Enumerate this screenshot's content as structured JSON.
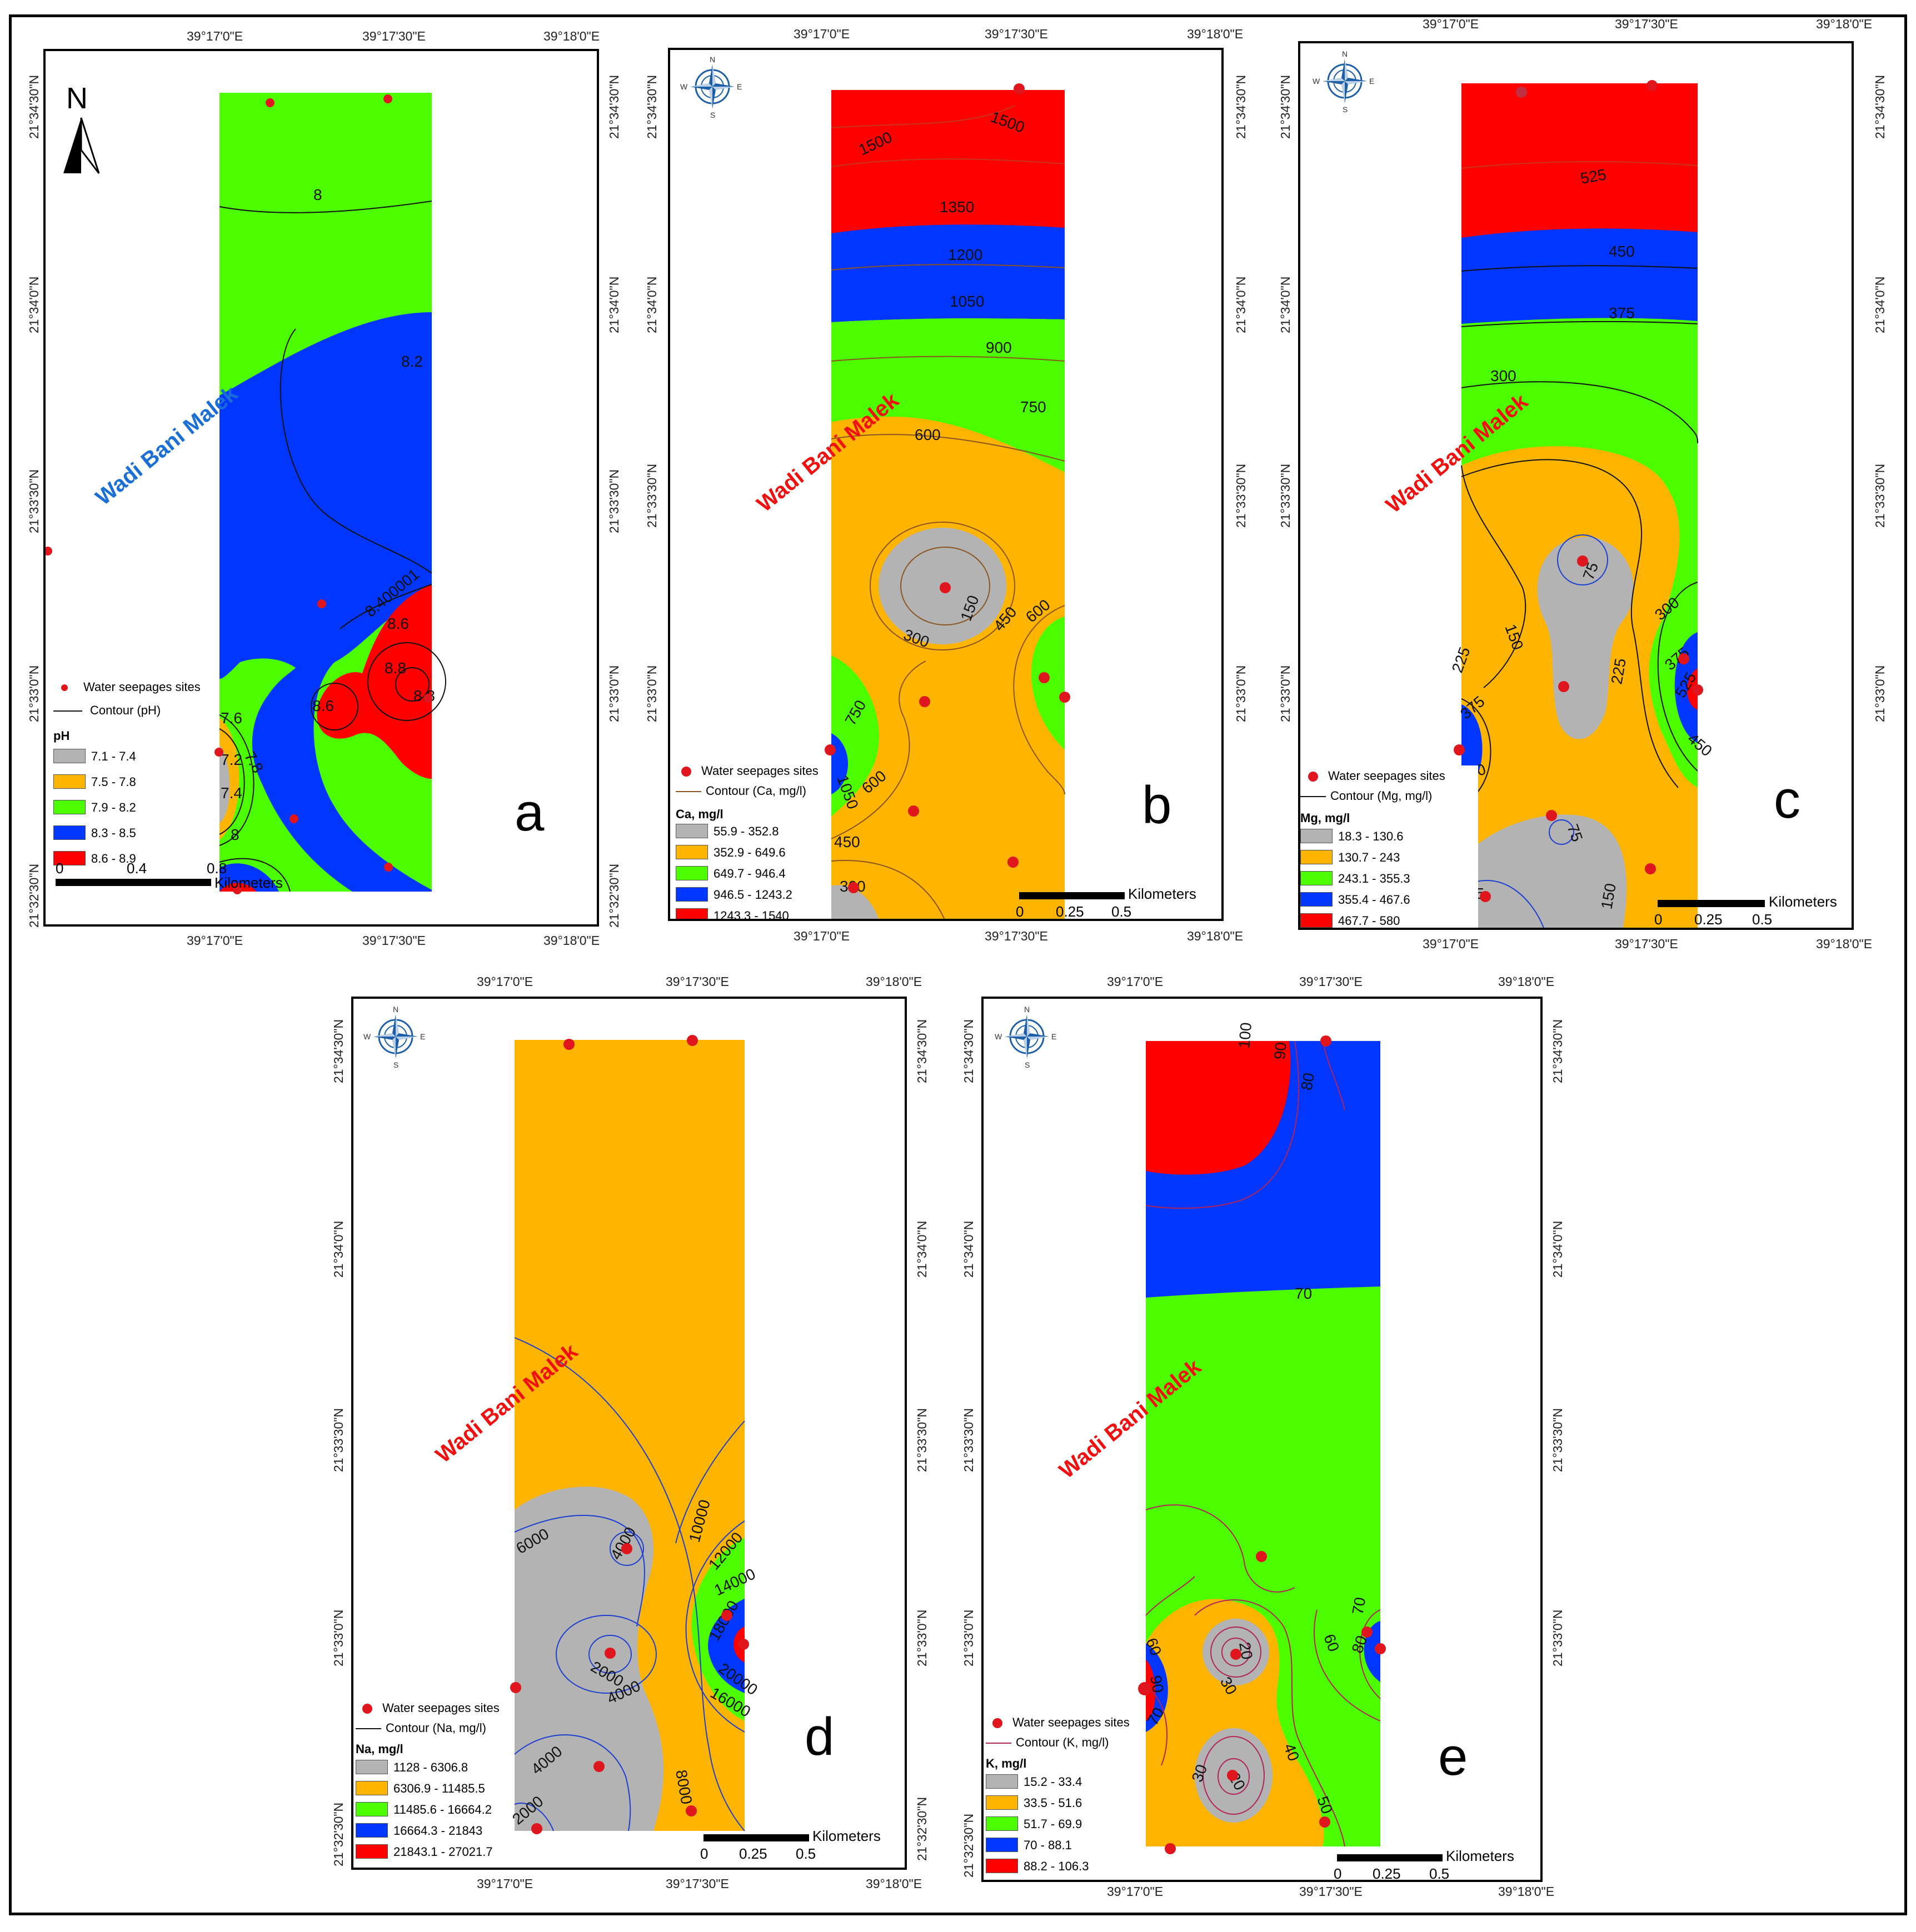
{
  "ticks": {
    "lon": [
      "39°17'0\"E",
      "39°17'30\"E",
      "39°18'0\"E"
    ],
    "lat": [
      "21°34'30\"N",
      "21°34'0\"N",
      "21°33'30\"N",
      "21°33'0\"N",
      "21°32'30\"N"
    ]
  },
  "place_label": "Wadi Bani Malek",
  "north_label": "N",
  "compass": {
    "n": "N",
    "e": "E",
    "s": "S",
    "w": "W"
  },
  "colors": {
    "gray": "#b3b3b3",
    "orange": "#ffb400",
    "green": "#4cfd00",
    "blue": "#0036ff",
    "red": "#ff0000",
    "site": "#e0161e"
  },
  "legend_common": {
    "sites": "Water seepages sites",
    "scale_unit": "Kilometers"
  },
  "panels": [
    {
      "letter": "a",
      "contour": "Contour (pH)",
      "title": "pH",
      "classes": [
        "7.1 - 7.4",
        "7.5 - 7.8",
        "7.9 - 8.2",
        "8.3 - 8.5",
        "8.6 - 8.9"
      ],
      "scale": [
        "0",
        "0.4",
        "0.8"
      ],
      "contour_labels": [
        "8",
        "8.2",
        "8.400001",
        "8.6",
        "8.6",
        "8.8",
        "8.8",
        "7.6",
        "7.8",
        "7.2",
        "7.4",
        "8"
      ]
    },
    {
      "letter": "b",
      "contour": "Contour (Ca, mg/l)",
      "title": "Ca, mg/l",
      "classes": [
        "55.9 - 352.8",
        "352.9 - 649.6",
        "649.7 - 946.4",
        "946.5 - 1243.2",
        "1243.3 - 1540"
      ],
      "scale": [
        "0",
        "0.25",
        "0.5"
      ],
      "contour_labels": [
        "1500",
        "1500",
        "1350",
        "1200",
        "1050",
        "900",
        "750",
        "600",
        "450",
        "600",
        "300",
        "150",
        "750",
        "1050",
        "600",
        "450",
        "300"
      ]
    },
    {
      "letter": "c",
      "contour": "Contour (Mg, mg/l)",
      "title": "Mg, mg/l",
      "classes": [
        "18.3 - 130.6",
        "130.7 - 243",
        "243.1 - 355.3",
        "355.4 - 467.6",
        "467.7 - 580"
      ],
      "scale": [
        "0",
        "0.25",
        "0.5"
      ],
      "contour_labels": [
        "525",
        "450",
        "375",
        "300",
        "75",
        "150",
        "225",
        "225",
        "300",
        "375",
        "525",
        "450",
        "375",
        "300",
        "75",
        "75",
        "150"
      ]
    },
    {
      "letter": "d",
      "contour": "Contour (Na, mg/l)",
      "title": "Na, mg/l",
      "classes": [
        "1128 - 6306.8",
        "6306.9 - 11485.5",
        "11485.6 - 16664.2",
        "16664.3 - 21843",
        "21843.1 - 27021.7"
      ],
      "scale": [
        "0",
        "0.25",
        "0.5"
      ],
      "contour_labels": [
        "6000",
        "10000",
        "12000",
        "14000",
        "4000",
        "2000",
        "4000",
        "4000",
        "18000",
        "20000",
        "16000",
        "8000",
        "2000"
      ]
    },
    {
      "letter": "e",
      "contour": "Contour (K, mg/l)",
      "title": "K, mg/l",
      "classes": [
        "15.2 - 33.4",
        "33.5 - 51.6",
        "51.7 - 69.9",
        "70 - 88.1",
        "88.2 - 106.3"
      ],
      "scale": [
        "0",
        "0.25",
        "0.5"
      ],
      "contour_labels": [
        "100",
        "90",
        "80",
        "70",
        "60",
        "60",
        "20",
        "30",
        "40",
        "50",
        "70",
        "80",
        "90",
        "70",
        "30",
        "20"
      ]
    }
  ]
}
